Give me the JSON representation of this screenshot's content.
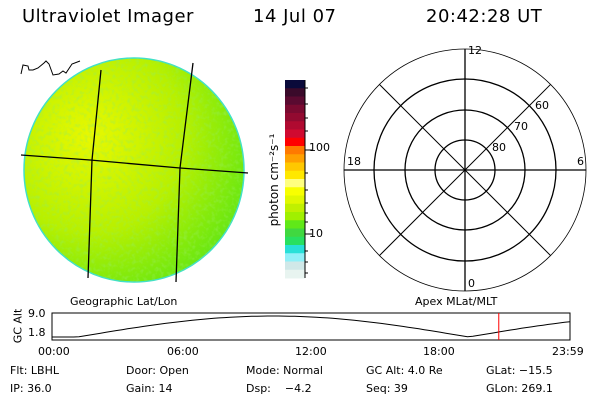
{
  "header": {
    "instrument": "Ultraviolet Imager",
    "date": "14 Jul 07",
    "time": "20:42:28 UT"
  },
  "colorbar": {
    "label": "photon cm⁻²s⁻¹",
    "ticks": [
      "100",
      "10"
    ],
    "colors": [
      "#0a0a3a",
      "#3a0a2a",
      "#5a0a30",
      "#7a0a30",
      "#920a30",
      "#b00a30",
      "#d00a30",
      "#ff0000",
      "#ff7a00",
      "#ffa000",
      "#ffc800",
      "#ffe800",
      "#ffff80",
      "#f8ff00",
      "#e0f800",
      "#c0f000",
      "#a0f000",
      "#60e818",
      "#40d840",
      "#28e060",
      "#28e0d8",
      "#90f0f8",
      "#d0e8e8",
      "#e8f4f0"
    ]
  },
  "polar": {
    "mlt_labels": {
      "top": "12",
      "left": "18",
      "right": "6",
      "bottom": "0"
    },
    "lat_labels": [
      "60",
      "70",
      "80"
    ]
  },
  "altitude_plot": {
    "left_label": "Geographic Lat/Lon",
    "right_label": "Apex MLat/MLT",
    "y_axis_label": "GC Alt",
    "y_ticks": [
      "9.0",
      "1.8"
    ],
    "x_ticks": [
      "00:00",
      "06:00",
      "12:00",
      "18:00",
      "23:59"
    ],
    "current_time_marker": "20:42",
    "marker_color": "#ff0000"
  },
  "info": {
    "row1": [
      "Flt: LBHL",
      "Door: Open",
      "Mode: Normal",
      "GC Alt: 4.0 Re",
      "GLat: −15.5"
    ],
    "row2": [
      "IP: 36.0",
      "Gain: 14",
      "Dsp:    −4.2",
      "Seq: 39",
      "GLon: 269.1"
    ]
  }
}
